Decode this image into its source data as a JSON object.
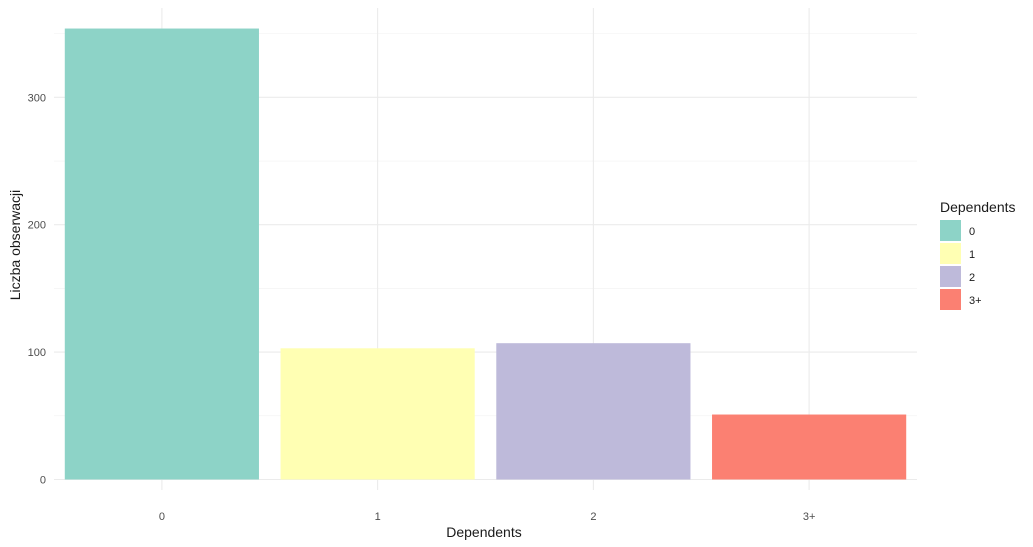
{
  "chart_data": {
    "type": "bar",
    "xlabel": "Dependents",
    "ylabel": "Liczba obserwacji",
    "categories": [
      "0",
      "1",
      "2",
      "3+"
    ],
    "values": [
      354,
      103,
      107,
      51
    ],
    "colors": [
      "#8dd3c7",
      "#ffffb3",
      "#bebada",
      "#fb8072"
    ],
    "ylim": [
      0,
      354
    ],
    "yticks": [
      0,
      100,
      200,
      300
    ],
    "grid": true,
    "legend": {
      "title": "Dependents",
      "position": "right",
      "entries": [
        "0",
        "1",
        "2",
        "3+"
      ]
    }
  }
}
